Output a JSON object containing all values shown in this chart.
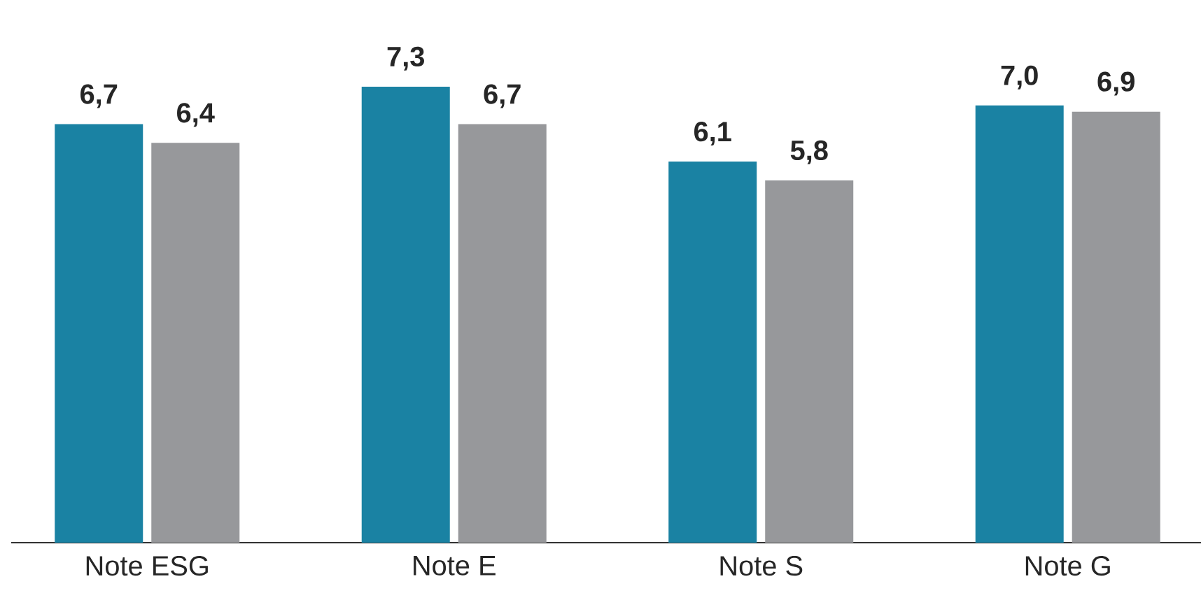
{
  "chart_data": {
    "type": "bar",
    "categories": [
      "Note ESG",
      "Note E",
      "Note S",
      "Note G"
    ],
    "series": [
      {
        "color": "#1a82a3",
        "values": [
          6.7,
          7.3,
          6.1,
          7.0
        ],
        "value_labels": [
          "6,7",
          "7,3",
          "6,1",
          "7,0"
        ]
      },
      {
        "color": "#97989b",
        "values": [
          6.4,
          6.7,
          5.8,
          6.9
        ],
        "value_labels": [
          "6,4",
          "6,7",
          "5,8",
          "6,9"
        ]
      }
    ],
    "tick_labels": "x"
  }
}
